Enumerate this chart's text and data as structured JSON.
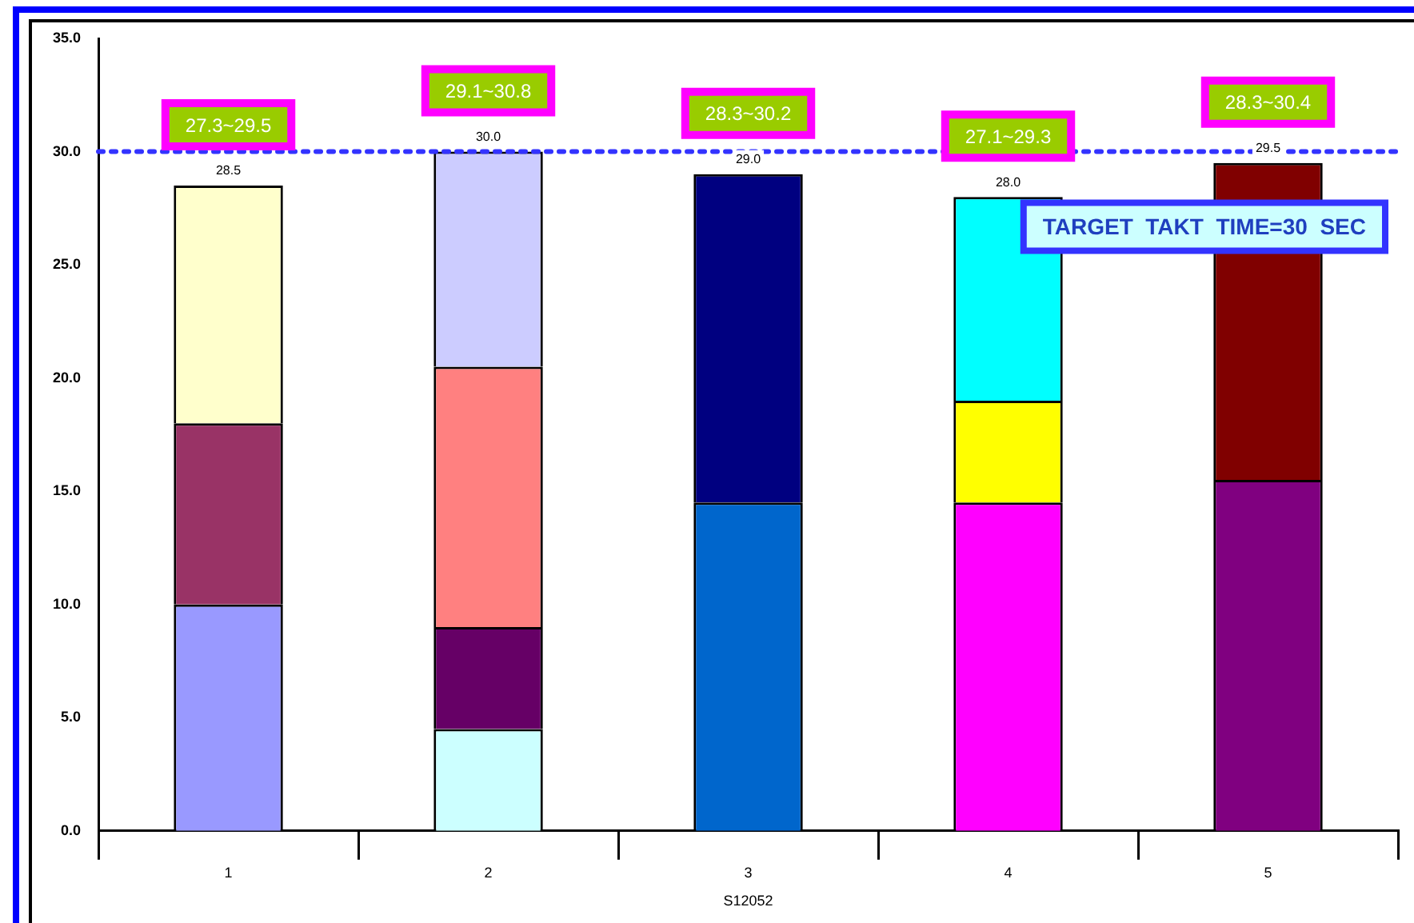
{
  "chart_data": {
    "type": "bar",
    "stacked": true,
    "xlabel": "S12052",
    "categories": [
      "1",
      "2",
      "3",
      "4",
      "5"
    ],
    "series": [
      {
        "values": [
          10,
          4.5,
          14.5,
          14.5,
          15.5
        ],
        "colors": [
          "#9999ff",
          "#ccffff",
          "#0066cc",
          "#ff00ff",
          "#800080"
        ]
      },
      {
        "values": [
          8,
          4.5,
          14.5,
          4.5,
          14
        ],
        "colors": [
          "#993366",
          "#660066",
          "#000080",
          "#ffff00",
          "#800000"
        ]
      },
      {
        "values": [
          10.5,
          11.5,
          null,
          9,
          null
        ],
        "colors": [
          "#ffffcc",
          "#ff8080",
          null,
          "#00ffff",
          null
        ]
      },
      {
        "values": [
          null,
          9.5,
          null,
          null,
          null
        ],
        "colors": [
          null,
          "#ccccff",
          null,
          null,
          null
        ]
      }
    ],
    "totals": [
      "28.5",
      "30.0",
      "29.0",
      "28.0",
      "29.5"
    ],
    "ylim": [
      0,
      35
    ],
    "yticks": [
      {
        "value": 0,
        "label": "0.0"
      },
      {
        "value": 5,
        "label": "5.0"
      },
      {
        "value": 10,
        "label": "10.0"
      },
      {
        "value": 15,
        "label": "15.0"
      },
      {
        "value": 20,
        "label": "20.0"
      },
      {
        "value": 25,
        "label": "25.0"
      },
      {
        "value": 30,
        "label": "30.0"
      },
      {
        "value": 35,
        "label": "35.0"
      }
    ],
    "ref_lines": [
      {
        "axis": "y",
        "value": 30,
        "label": "TARGET  TAKT  TIME=30  SEC",
        "color": "#3333ff",
        "line_style": "dotted"
      }
    ],
    "annotations": [
      "27.3~29.5",
      "29.1~30.8",
      "28.3~30.2",
      "27.1~29.3",
      "28.3~30.4"
    ],
    "legend": false
  }
}
